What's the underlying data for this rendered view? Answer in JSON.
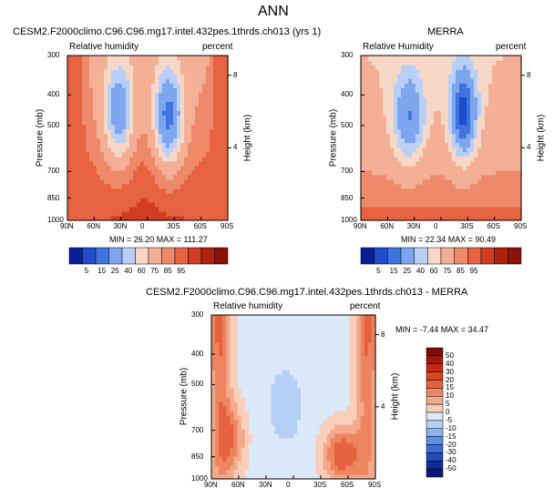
{
  "page_title": "ANN",
  "chart_data": [
    {
      "type": "heatmap",
      "title": "CESM2.F2000climo.C96.C96.mg17.intel.432pes.1thrds.ch013 (yrs 1)",
      "left_label": "Relative humidity",
      "right_label": "percent",
      "xlabel": "",
      "ylabel": "Pressure (mb)",
      "ylabel_right": "Height (km)",
      "x_ticks": [
        "90N",
        "60N",
        "30N",
        "0",
        "30S",
        "60S",
        "90S"
      ],
      "y_ticks": [
        "300",
        "400",
        "500",
        "700",
        "850",
        "1000"
      ],
      "y_ticks_right": [
        "8",
        "4"
      ],
      "ylim": [
        1000,
        300
      ],
      "stats": "MIN =  26.20  MAX = 111.27",
      "colorbar_levels": [
        "5",
        "15",
        "25",
        "40",
        "60",
        "75",
        "85",
        "95"
      ],
      "colorbar_colors": [
        "#0a1e96",
        "#1f4ccc",
        "#3f74e0",
        "#7ea6ef",
        "#b8d0f7",
        "#f7d8c6",
        "#f4b097",
        "#ee8a6a",
        "#e66240",
        "#d03d20",
        "#ad220f",
        "#8a1208"
      ]
    },
    {
      "type": "heatmap",
      "title": "MERRA",
      "left_label": "Relative Humidity",
      "right_label": "percent",
      "xlabel": "",
      "ylabel": "Pressure (mb)",
      "ylabel_right": "Height (km)",
      "x_ticks": [
        "90N",
        "60N",
        "30N",
        "0",
        "30S",
        "60S",
        "90S"
      ],
      "y_ticks": [
        "300",
        "400",
        "500",
        "700",
        "850",
        "1000"
      ],
      "y_ticks_right": [
        "8",
        "4"
      ],
      "ylim": [
        1000,
        300
      ],
      "stats": "MIN =  22.34  MAX =  90.49",
      "colorbar_levels": [
        "5",
        "15",
        "25",
        "40",
        "60",
        "75",
        "85",
        "95"
      ],
      "colorbar_colors": [
        "#0a1e96",
        "#1f4ccc",
        "#3f74e0",
        "#7ea6ef",
        "#b8d0f7",
        "#f7d8c6",
        "#f4b097",
        "#ee8a6a",
        "#e66240",
        "#d03d20",
        "#ad220f",
        "#8a1208"
      ]
    },
    {
      "type": "heatmap",
      "title": "CESM2.F2000climo.C96.C96.mg17.intel.432pes.1thrds.ch013 - MERRA",
      "left_label": "Relative humidity",
      "right_label": "percent",
      "xlabel": "",
      "ylabel": "Pressure (mb)",
      "ylabel_right": "Height (km)",
      "x_ticks": [
        "90N",
        "60N",
        "30N",
        "0",
        "30S",
        "60S",
        "90S"
      ],
      "y_ticks": [
        "300",
        "400",
        "500",
        "700",
        "850",
        "1000"
      ],
      "y_ticks_right": [
        "8",
        "4"
      ],
      "ylim": [
        1000,
        300
      ],
      "stats": "MIN = -7.44  MAX = 34.47",
      "colorbar_levels": [
        "50",
        "40",
        "30",
        "20",
        "15",
        "10",
        "5",
        "0",
        "-5",
        "-10",
        "-15",
        "-20",
        "-30",
        "-40",
        "-50"
      ],
      "colorbar_colors": [
        "#7d1006",
        "#a11b0c",
        "#c22b15",
        "#d94422",
        "#e6623e",
        "#ee8561",
        "#f4a98a",
        "#f9cfba",
        "#dbe9fb",
        "#b5cff5",
        "#8bb1ee",
        "#5e8fe4",
        "#3b6cd6",
        "#2348b8",
        "#122b93",
        "#0a1a78"
      ]
    }
  ]
}
